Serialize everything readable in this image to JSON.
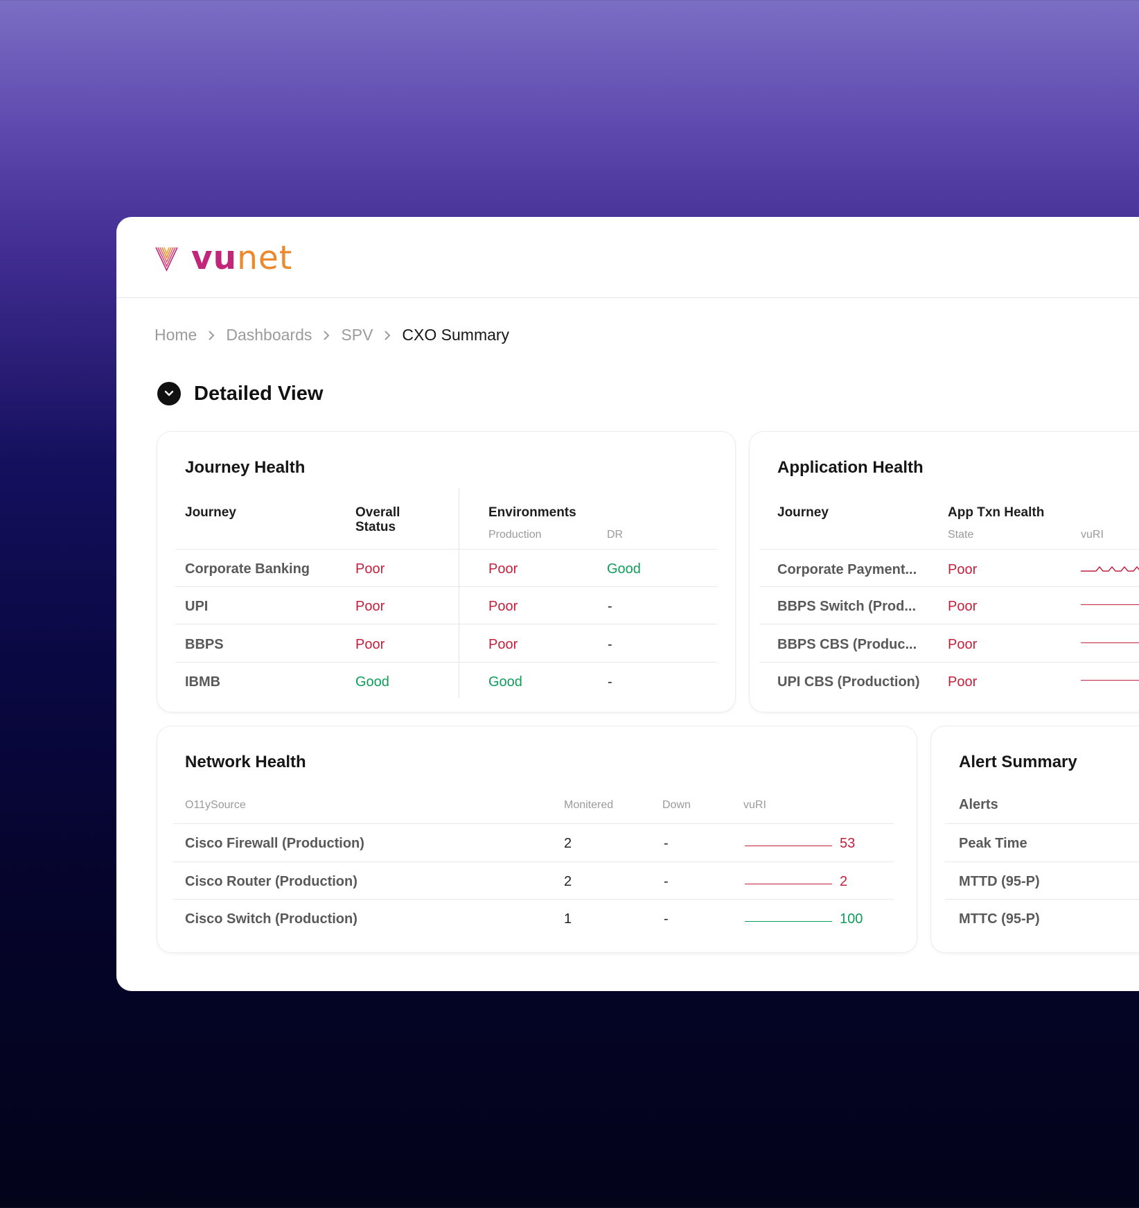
{
  "brand": {
    "logo_text_a": "vu",
    "logo_text_b": "net"
  },
  "breadcrumb": [
    "Home",
    "Dashboards",
    "SPV",
    "CXO Summary"
  ],
  "section_title": "Detailed View",
  "colors": {
    "poor": "#c41f3b",
    "good": "#0f9d5a"
  },
  "journey_health": {
    "title": "Journey Health",
    "headers": {
      "journey": "Journey",
      "overall_line1": "Overall",
      "overall_line2": "Status",
      "environments": "Environments",
      "production": "Production",
      "dr": "DR"
    },
    "rows": [
      {
        "journey": "Corporate Banking",
        "overall": "Poor",
        "production": "Poor",
        "dr": "Good"
      },
      {
        "journey": "UPI",
        "overall": "Poor",
        "production": "Poor",
        "dr": "-"
      },
      {
        "journey": "BBPS",
        "overall": "Poor",
        "production": "Poor",
        "dr": "-"
      },
      {
        "journey": "IBMB",
        "overall": "Good",
        "production": "Good",
        "dr": "-"
      }
    ]
  },
  "application_health": {
    "title": "Application Health",
    "headers": {
      "journey": "Journey",
      "app_txn": "App Txn Health",
      "state": "State",
      "vuri": "vuRI"
    },
    "rows": [
      {
        "journey": "Corporate Payment...",
        "state": "Poor"
      },
      {
        "journey": "BBPS Switch (Prod...",
        "state": "Poor"
      },
      {
        "journey": "BBPS CBS (Produc...",
        "state": "Poor"
      },
      {
        "journey": "UPI CBS (Production)",
        "state": "Poor"
      }
    ]
  },
  "network_health": {
    "title": "Network Health",
    "headers": {
      "source": "O11ySource",
      "monitored": "Monitered",
      "down": "Down",
      "vuri": "vuRI"
    },
    "rows": [
      {
        "source": "Cisco Firewall (Production)",
        "monitored": "2",
        "down": "-",
        "vuri": "53",
        "status": "poor"
      },
      {
        "source": "Cisco Router (Production)",
        "monitored": "2",
        "down": "-",
        "vuri": "2",
        "status": "poor"
      },
      {
        "source": "Cisco Switch (Production)",
        "monitored": "1",
        "down": "-",
        "vuri": "100",
        "status": "good"
      }
    ]
  },
  "alert_summary": {
    "title": "Alert Summary",
    "rows": [
      "Alerts",
      "Peak Time",
      "MTTD (95-P)",
      "MTTC (95-P)"
    ]
  }
}
